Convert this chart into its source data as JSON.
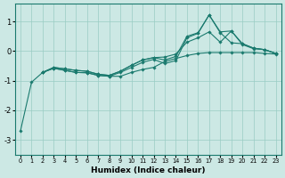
{
  "xlabel": "Humidex (Indice chaleur)",
  "bg_color": "#cce8e4",
  "line_color": "#1a7a6e",
  "grid_color": "#99ccC4",
  "xlim": [
    -0.5,
    23.5
  ],
  "ylim": [
    -3.5,
    1.6
  ],
  "yticks": [
    -3,
    -2,
    -1,
    0,
    1
  ],
  "xticks": [
    0,
    1,
    2,
    3,
    4,
    5,
    6,
    7,
    8,
    9,
    10,
    11,
    12,
    13,
    14,
    15,
    16,
    17,
    18,
    19,
    20,
    21,
    22,
    23
  ],
  "s1": [
    [
      0,
      -2.7
    ],
    [
      1,
      -1.05
    ],
    [
      2,
      -0.72
    ],
    [
      3,
      -0.58
    ],
    [
      4,
      -0.65
    ],
    [
      5,
      -0.72
    ],
    [
      6,
      -0.73
    ],
    [
      7,
      -0.82
    ],
    [
      8,
      -0.85
    ],
    [
      9,
      -0.85
    ],
    [
      10,
      -0.72
    ],
    [
      11,
      -0.62
    ],
    [
      12,
      -0.55
    ],
    [
      13,
      -0.35
    ],
    [
      14,
      -0.25
    ],
    [
      15,
      -0.15
    ],
    [
      16,
      -0.08
    ],
    [
      17,
      -0.05
    ],
    [
      18,
      -0.05
    ],
    [
      19,
      -0.05
    ],
    [
      20,
      -0.05
    ],
    [
      21,
      -0.05
    ],
    [
      22,
      -0.08
    ],
    [
      23,
      -0.1
    ]
  ],
  "s2": [
    [
      2,
      -0.72
    ],
    [
      3,
      -0.58
    ],
    [
      4,
      -0.65
    ],
    [
      5,
      -0.72
    ],
    [
      6,
      -0.73
    ],
    [
      7,
      -0.82
    ],
    [
      8,
      -0.85
    ],
    [
      9,
      -0.72
    ],
    [
      10,
      -0.55
    ],
    [
      11,
      -0.38
    ],
    [
      12,
      -0.28
    ],
    [
      13,
      -0.42
    ],
    [
      14,
      -0.32
    ],
    [
      15,
      0.45
    ],
    [
      16,
      0.6
    ],
    [
      17,
      1.22
    ],
    [
      18,
      0.62
    ],
    [
      19,
      0.28
    ],
    [
      20,
      0.25
    ],
    [
      21,
      0.1
    ],
    [
      22,
      0.05
    ],
    [
      23,
      -0.08
    ]
  ],
  "s3": [
    [
      2,
      -0.72
    ],
    [
      3,
      -0.55
    ],
    [
      4,
      -0.6
    ],
    [
      5,
      -0.65
    ],
    [
      6,
      -0.68
    ],
    [
      7,
      -0.78
    ],
    [
      8,
      -0.82
    ],
    [
      9,
      -0.68
    ],
    [
      10,
      -0.48
    ],
    [
      11,
      -0.3
    ],
    [
      12,
      -0.22
    ],
    [
      13,
      -0.3
    ],
    [
      14,
      -0.18
    ],
    [
      15,
      0.5
    ],
    [
      16,
      0.62
    ],
    [
      17,
      1.22
    ],
    [
      18,
      0.65
    ],
    [
      19,
      0.68
    ],
    [
      20,
      0.25
    ],
    [
      21,
      0.1
    ],
    [
      22,
      0.05
    ],
    [
      23,
      -0.08
    ]
  ],
  "s4": [
    [
      2,
      -0.72
    ],
    [
      3,
      -0.55
    ],
    [
      4,
      -0.6
    ],
    [
      5,
      -0.65
    ],
    [
      6,
      -0.68
    ],
    [
      7,
      -0.78
    ],
    [
      8,
      -0.82
    ],
    [
      9,
      -0.68
    ],
    [
      10,
      -0.48
    ],
    [
      11,
      -0.3
    ],
    [
      12,
      -0.22
    ],
    [
      13,
      -0.2
    ],
    [
      14,
      -0.1
    ],
    [
      15,
      0.3
    ],
    [
      16,
      0.45
    ],
    [
      17,
      0.65
    ],
    [
      18,
      0.3
    ],
    [
      19,
      0.68
    ],
    [
      20,
      0.22
    ],
    [
      21,
      0.08
    ],
    [
      22,
      0.05
    ],
    [
      23,
      -0.08
    ]
  ]
}
